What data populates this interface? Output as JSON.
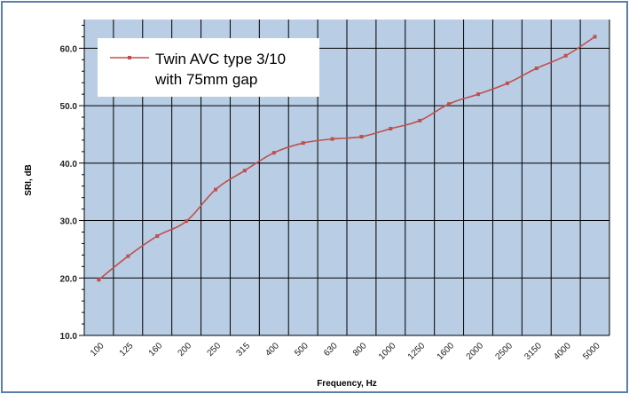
{
  "chart_data": {
    "type": "line",
    "title": "",
    "xlabel": "Frequency, Hz",
    "ylabel": "SRI, dB",
    "ylim": [
      10,
      65
    ],
    "y_ticks": [
      "10.0",
      "20.0",
      "30.0",
      "40.0",
      "50.0",
      "60.0"
    ],
    "categories": [
      "100",
      "125",
      "160",
      "200",
      "250",
      "315",
      "400",
      "500",
      "630",
      "800",
      "1000",
      "1250",
      "1600",
      "2000",
      "2500",
      "3150",
      "4000",
      "5000"
    ],
    "grid": true,
    "legend_position": "top-left",
    "colors": {
      "plot_background": "#b9cde4",
      "series": "#c0504d",
      "grid": "#000000",
      "frame": "#5b7fa8"
    },
    "series": [
      {
        "name_line1": "Twin AVC type 3/10",
        "name_line2": "with 75mm gap",
        "values": [
          19.7,
          23.8,
          27.3,
          29.9,
          35.4,
          38.7,
          41.8,
          43.5,
          44.2,
          44.6,
          46.0,
          47.4,
          50.3,
          52.0,
          53.9,
          56.5,
          58.7,
          62.0
        ]
      }
    ]
  }
}
